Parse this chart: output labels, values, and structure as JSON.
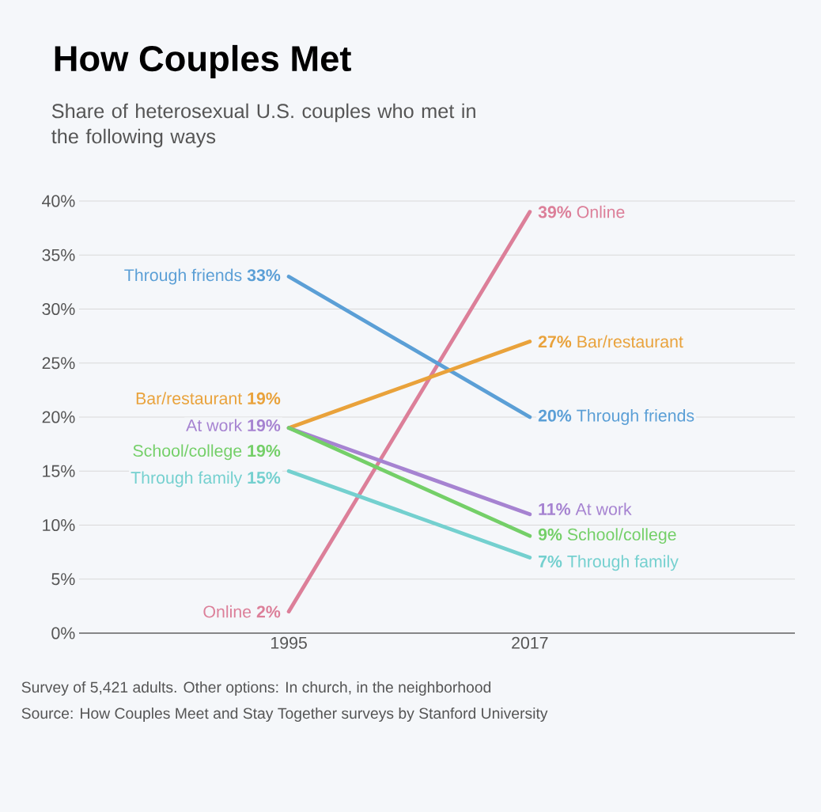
{
  "chart_data": {
    "type": "line",
    "title": "How Couples Met",
    "subtitle": "Share of heterosexual U.S. couples who met in the following ways",
    "categories": [
      "1995",
      "2017"
    ],
    "series": [
      {
        "name": "Online",
        "color": "#dc7f99",
        "values": [
          2,
          39
        ],
        "value_labels": [
          "2%",
          "39%"
        ]
      },
      {
        "name": "Through friends",
        "color": "#5b9fd6",
        "values": [
          33,
          20
        ],
        "value_labels": [
          "33%",
          "20%"
        ]
      },
      {
        "name": "Bar/restaurant",
        "color": "#e9a23b",
        "values": [
          19,
          27
        ],
        "value_labels": [
          "19%",
          "27%"
        ]
      },
      {
        "name": "At work",
        "color": "#a683d1",
        "values": [
          19,
          11
        ],
        "value_labels": [
          "19%",
          "11%"
        ]
      },
      {
        "name": "School/college",
        "color": "#74cf68",
        "values": [
          19,
          9
        ],
        "value_labels": [
          "19%",
          "9%"
        ]
      },
      {
        "name": "Through family",
        "color": "#74d0cf",
        "values": [
          15,
          7
        ],
        "value_labels": [
          "15%",
          "7%"
        ]
      }
    ],
    "ylim": [
      0,
      40
    ],
    "yticks": [
      {
        "value": 0,
        "label": "0%"
      },
      {
        "value": 5,
        "label": "5%"
      },
      {
        "value": 10,
        "label": "10%"
      },
      {
        "value": 15,
        "label": "15%"
      },
      {
        "value": 20,
        "label": "20%"
      },
      {
        "value": 25,
        "label": "25%"
      },
      {
        "value": 30,
        "label": "30%"
      },
      {
        "value": 35,
        "label": "35%"
      },
      {
        "value": 40,
        "label": "40%"
      }
    ],
    "grid": "y",
    "legend": false,
    "marker": "none",
    "line_style": "solid",
    "annotations": [
      "Survey of 5,421 adults. Other options: In church, in the neighborhood",
      "Source: How Couples Meet and Stay Together surveys by Stanford University"
    ]
  }
}
